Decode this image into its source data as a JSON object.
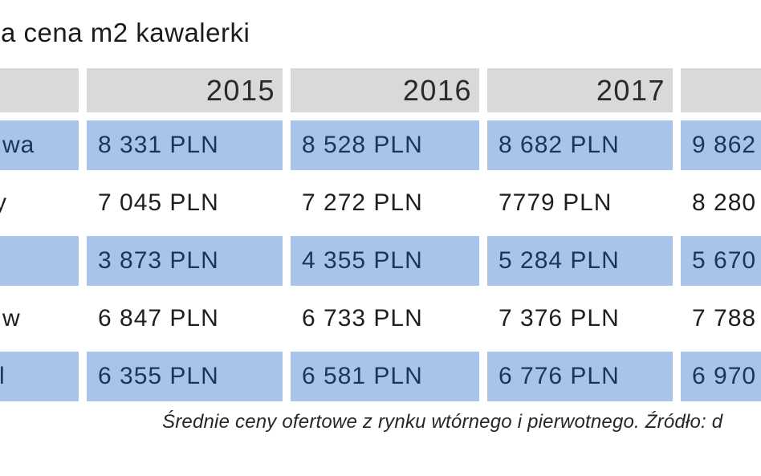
{
  "title": "a cena m2 kawalerki",
  "chart_data": {
    "type": "table",
    "title": "a cena m2 kawalerki",
    "columns": [
      "",
      "2015",
      "2016",
      "2017",
      ""
    ],
    "rows": [
      [
        "wa",
        "8 331 PLN",
        "8 528 PLN",
        "8 682 PLN",
        "9 862"
      ],
      [
        "y",
        "7 045 PLN",
        "7 272 PLN",
        "7779 PLN",
        "8 280"
      ],
      [
        "",
        "3 873 PLN",
        "4 355 PLN",
        "5 284 PLN",
        "5 670"
      ],
      [
        "w",
        "6 847 PLN",
        "6 733 PLN",
        "7 376 PLN",
        "7 788"
      ],
      [
        "l",
        "6 355 PLN",
        "6 581 PLN",
        "6 776 PLN",
        "6 970"
      ]
    ],
    "caption": "Średnie ceny ofertowe z rynku wtórnego i pierwotnego. Źródło: d",
    "layout": {
      "row_stripe_colors": [
        "#a9c4ea",
        "#ffffff"
      ],
      "header_background": "#d9d9d9",
      "left_column_cropped": true,
      "right_column_cropped": true,
      "currency": "PLN"
    }
  },
  "colors": {
    "row_blue": "#a9c4ea",
    "header_gray": "#d9d9d9",
    "navy_text": "#17375d",
    "dark_text": "#1f1f1f",
    "background": "#ffffff"
  }
}
